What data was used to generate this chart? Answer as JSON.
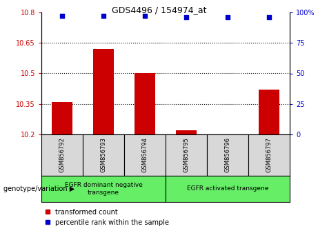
{
  "title": "GDS4496 / 154974_at",
  "samples": [
    "GSM856792",
    "GSM856793",
    "GSM856794",
    "GSM856795",
    "GSM856796",
    "GSM856797"
  ],
  "bar_values": [
    10.36,
    10.62,
    10.5,
    10.22,
    10.19,
    10.42
  ],
  "percentile_values": [
    97,
    97,
    97,
    96,
    96,
    96
  ],
  "bar_color": "#cc0000",
  "dot_color": "#0000cc",
  "ylim_left": [
    10.2,
    10.8
  ],
  "ylim_right": [
    0,
    100
  ],
  "yticks_left": [
    10.2,
    10.35,
    10.5,
    10.65,
    10.8
  ],
  "yticks_right": [
    0,
    25,
    50,
    75,
    100
  ],
  "ytick_labels_left": [
    "10.2",
    "10.35",
    "10.5",
    "10.65",
    "10.8"
  ],
  "ytick_labels_right": [
    "0",
    "25",
    "50",
    "75",
    "100%"
  ],
  "hlines": [
    10.35,
    10.5,
    10.65
  ],
  "group1_label": "EGFR dominant negative\ntransgene",
  "group2_label": "EGFR activated transgene",
  "group_color": "#66ee66",
  "sample_box_color": "#d8d8d8",
  "legend_label_red": "transformed count",
  "legend_label_blue": "percentile rank within the sample",
  "genotype_label": "genotype/variation",
  "plot_bg": "#ffffff",
  "left_tick_color": "#cc0000",
  "right_tick_color": "#0000cc"
}
